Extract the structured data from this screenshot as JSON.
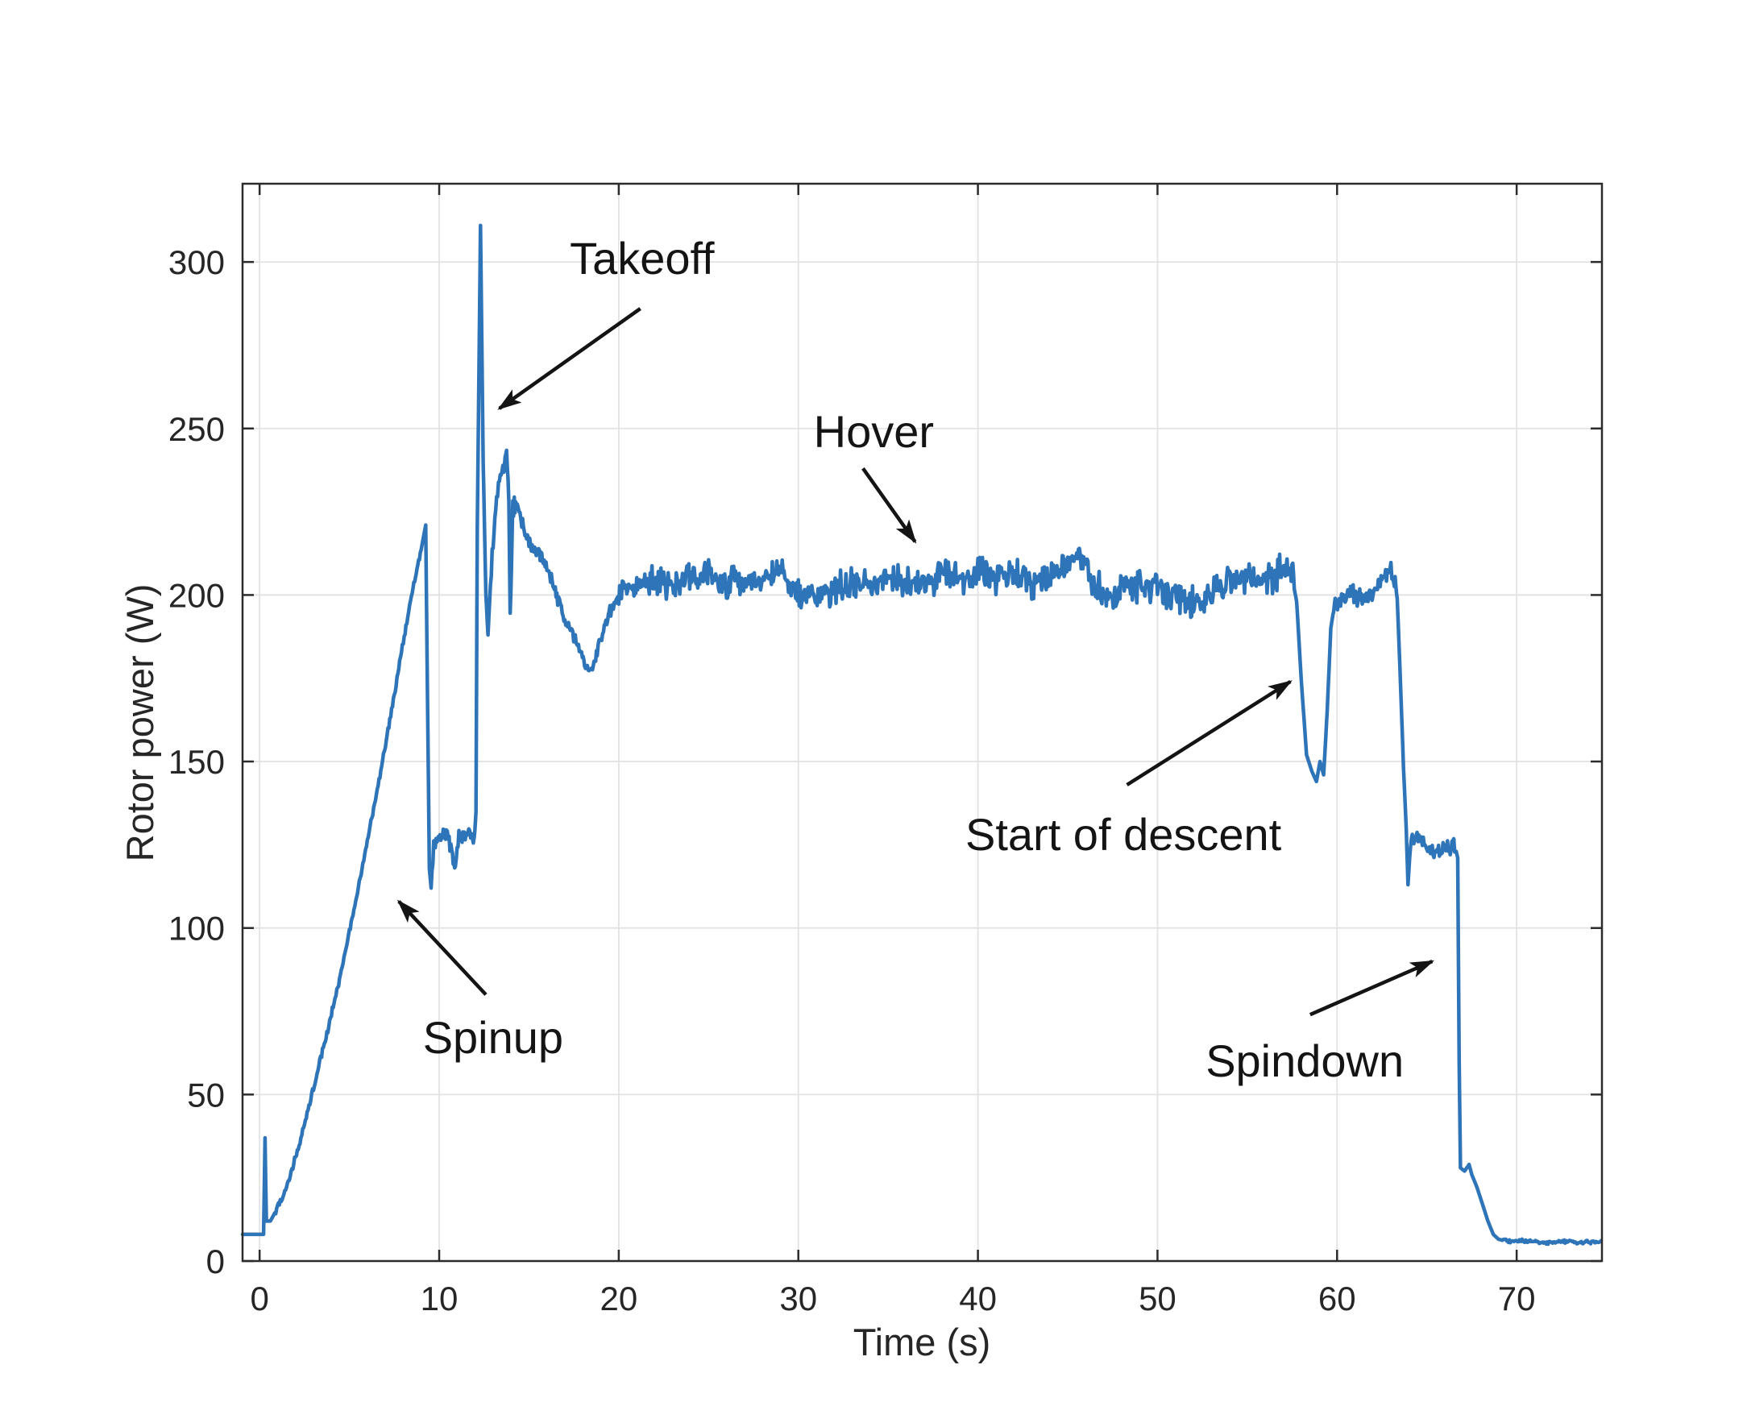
{
  "figure": {
    "background": "#ffffff",
    "axis_color": "#2b2b2b",
    "grid_color": "#e2e2e2",
    "annotation_color": "#141414"
  },
  "chart_data": {
    "type": "line",
    "title": "",
    "xlabel": "Time (s)",
    "ylabel": "Rotor power (W)",
    "xlim": [
      -0.95,
      74.75
    ],
    "ylim": [
      0,
      323.5
    ],
    "xticks": [
      0,
      10,
      20,
      30,
      40,
      50,
      60,
      70
    ],
    "yticks": [
      0,
      50,
      100,
      150,
      200,
      250,
      300
    ],
    "grid": true,
    "legend": "none",
    "series": [
      {
        "name": "rotor-power",
        "color": "#2e74b8",
        "width": 4.5,
        "points": [
          [
            -0.95,
            8
          ],
          [
            -0.5,
            8
          ],
          [
            0,
            8
          ],
          [
            0.22,
            8
          ],
          [
            0.3,
            37
          ],
          [
            0.38,
            12
          ],
          [
            0.6,
            12
          ],
          [
            1,
            16
          ],
          [
            1.5,
            22
          ],
          [
            2,
            31
          ],
          [
            2.5,
            41
          ],
          [
            3,
            52
          ],
          [
            3.5,
            63
          ],
          [
            4,
            74
          ],
          [
            4.5,
            86
          ],
          [
            5,
            99
          ],
          [
            5.5,
            112
          ],
          [
            6,
            126
          ],
          [
            6.5,
            140
          ],
          [
            7,
            155
          ],
          [
            7.5,
            170
          ],
          [
            8,
            186
          ],
          [
            8.5,
            201
          ],
          [
            8.9,
            211
          ],
          [
            9.25,
            221
          ],
          [
            9.45,
            118
          ],
          [
            9.55,
            112
          ],
          [
            9.7,
            124
          ],
          [
            10,
            127
          ],
          [
            10.4,
            129
          ],
          [
            10.7,
            122
          ],
          [
            10.9,
            118
          ],
          [
            11.1,
            128
          ],
          [
            11.4,
            127
          ],
          [
            11.7,
            129
          ],
          [
            11.95,
            126
          ],
          [
            12.05,
            135
          ],
          [
            12.12,
            220
          ],
          [
            12.3,
            311
          ],
          [
            12.45,
            240
          ],
          [
            12.6,
            200
          ],
          [
            12.72,
            188
          ],
          [
            12.9,
            208
          ],
          [
            13.1,
            224
          ],
          [
            13.35,
            234
          ],
          [
            13.6,
            239
          ],
          [
            13.75,
            242
          ],
          [
            13.88,
            228
          ],
          [
            13.95,
            194
          ],
          [
            14.1,
            226
          ],
          [
            14.3,
            228
          ],
          [
            14.6,
            222
          ],
          [
            15,
            216
          ],
          [
            15.4,
            213
          ],
          [
            15.8,
            210
          ],
          [
            16.2,
            206
          ],
          [
            16.6,
            199
          ],
          [
            17,
            193
          ],
          [
            17.4,
            189
          ],
          [
            17.8,
            184
          ],
          [
            18.1,
            180
          ],
          [
            18.45,
            178
          ],
          [
            18.8,
            183
          ],
          [
            19.2,
            190
          ],
          [
            19.6,
            196
          ],
          [
            20,
            200
          ],
          [
            20.5,
            202
          ],
          [
            21.5,
            204
          ],
          [
            23,
            204
          ],
          [
            24.5,
            206
          ],
          [
            26,
            204
          ],
          [
            27.5,
            203
          ],
          [
            29,
            207
          ],
          [
            30,
            201
          ],
          [
            31,
            199
          ],
          [
            32,
            202
          ],
          [
            33,
            204
          ],
          [
            34,
            203
          ],
          [
            35,
            206
          ],
          [
            36,
            204
          ],
          [
            37,
            203
          ],
          [
            38,
            206
          ],
          [
            39,
            204
          ],
          [
            40,
            207
          ],
          [
            41,
            205
          ],
          [
            42,
            207
          ],
          [
            43,
            203
          ],
          [
            44,
            205
          ],
          [
            45,
            209
          ],
          [
            45.8,
            211
          ],
          [
            46.5,
            204
          ],
          [
            47.3,
            199
          ],
          [
            48,
            201
          ],
          [
            49,
            203
          ],
          [
            50,
            202
          ],
          [
            51,
            199
          ],
          [
            52,
            198
          ],
          [
            53,
            201
          ],
          [
            54,
            204
          ],
          [
            55,
            206
          ],
          [
            56,
            204
          ],
          [
            56.8,
            207
          ],
          [
            57.4,
            208
          ],
          [
            57.75,
            198
          ],
          [
            58,
            175
          ],
          [
            58.3,
            152
          ],
          [
            58.6,
            147
          ],
          [
            58.85,
            144
          ],
          [
            59.05,
            150
          ],
          [
            59.25,
            146
          ],
          [
            59.45,
            165
          ],
          [
            59.65,
            190
          ],
          [
            59.85,
            197
          ],
          [
            60.2,
            199
          ],
          [
            60.8,
            200
          ],
          [
            61.4,
            198
          ],
          [
            62,
            202
          ],
          [
            62.5,
            204
          ],
          [
            62.9,
            208
          ],
          [
            63.15,
            206
          ],
          [
            63.35,
            199
          ],
          [
            63.5,
            178
          ],
          [
            63.7,
            148
          ],
          [
            63.85,
            130
          ],
          [
            63.95,
            113
          ],
          [
            64.1,
            126
          ],
          [
            64.5,
            127
          ],
          [
            65,
            124
          ],
          [
            65.5,
            122
          ],
          [
            66,
            125
          ],
          [
            66.3,
            123
          ],
          [
            66.55,
            125
          ],
          [
            66.72,
            121
          ],
          [
            66.8,
            60
          ],
          [
            66.87,
            28
          ],
          [
            67.1,
            27
          ],
          [
            67.35,
            29
          ],
          [
            67.5,
            26
          ],
          [
            67.8,
            22
          ],
          [
            68.1,
            17
          ],
          [
            68.4,
            12
          ],
          [
            68.7,
            8
          ],
          [
            69,
            6.5
          ],
          [
            69.5,
            6
          ],
          [
            70.5,
            6
          ],
          [
            71.5,
            5.5
          ],
          [
            72.5,
            6
          ],
          [
            73.5,
            5.5
          ],
          [
            74.7,
            6
          ]
        ],
        "noise_segments": [
          [
            0.9,
            9.0,
            1.2
          ],
          [
            9.6,
            11.95,
            2.5
          ],
          [
            12.9,
            14.4,
            3.0
          ],
          [
            14.5,
            19.8,
            2.5
          ],
          [
            20.0,
            57.6,
            5.5
          ],
          [
            59.8,
            63.3,
            3.5
          ],
          [
            64.1,
            66.6,
            2.5
          ],
          [
            69.2,
            74.7,
            0.6
          ]
        ]
      }
    ],
    "annotations": [
      {
        "label": "Takeoff",
        "text_at": [
          21.3,
          301
        ],
        "arrow_from": [
          21.2,
          286
        ],
        "arrow_to": [
          13.35,
          256
        ]
      },
      {
        "label": "Hover",
        "text_at": [
          34.2,
          249
        ],
        "arrow_from": [
          33.6,
          238
        ],
        "arrow_to": [
          36.5,
          216
        ]
      },
      {
        "label": "Spinup",
        "text_at": [
          13.0,
          67
        ],
        "arrow_from": [
          12.6,
          80
        ],
        "arrow_to": [
          7.75,
          108
        ]
      },
      {
        "label": "Start of descent",
        "text_at": [
          48.1,
          128
        ],
        "arrow_from": [
          48.3,
          143
        ],
        "arrow_to": [
          57.4,
          174
        ]
      },
      {
        "label": "Spindown",
        "text_at": [
          58.2,
          60
        ],
        "arrow_from": [
          58.5,
          74
        ],
        "arrow_to": [
          65.3,
          90
        ]
      }
    ]
  }
}
